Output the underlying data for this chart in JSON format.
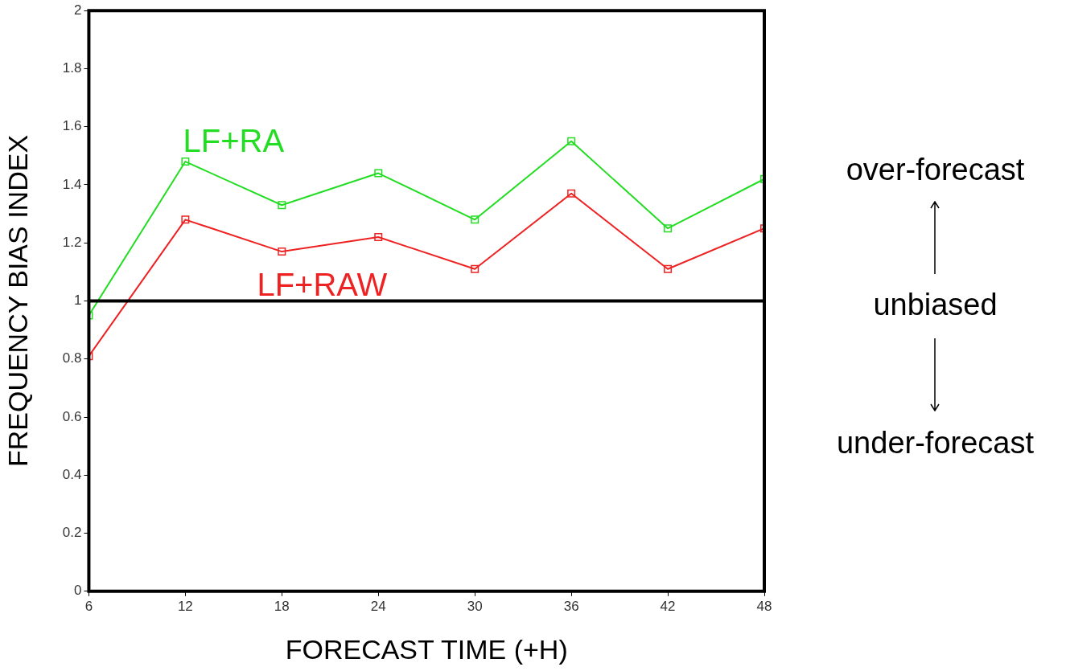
{
  "chart_data": {
    "type": "line",
    "xlabel": "FORECAST TIME (+H)",
    "ylabel": "FREQUENCY BIAS INDEX",
    "x": [
      6,
      12,
      18,
      24,
      30,
      36,
      42,
      48
    ],
    "series": [
      {
        "name": "LF+RA",
        "color": "#22dd22",
        "values": [
          0.95,
          1.48,
          1.33,
          1.44,
          1.28,
          1.55,
          1.25,
          1.42
        ]
      },
      {
        "name": "LF+RAW",
        "color": "#ee2222",
        "values": [
          0.81,
          1.28,
          1.17,
          1.22,
          1.11,
          1.37,
          1.11,
          1.25
        ]
      }
    ],
    "xlim": [
      6,
      48
    ],
    "xticks": [
      6,
      12,
      18,
      24,
      30,
      36,
      42,
      48
    ],
    "ylim": [
      0,
      2
    ],
    "yticks": [
      0,
      0.2,
      0.4,
      0.6,
      0.8,
      1,
      1.2,
      1.4,
      1.6,
      1.8,
      2
    ],
    "ref_lines": [
      {
        "axis": "y",
        "value": 1,
        "color": "#000000"
      }
    ],
    "annotations": [
      "over-forecast",
      "unbiased",
      "under-forecast"
    ],
    "marker": "square",
    "line_style": "solid",
    "grid": false,
    "legend": false
  }
}
